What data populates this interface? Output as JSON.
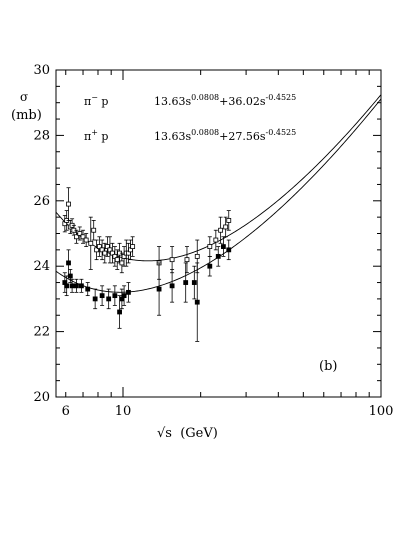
{
  "chart_data": {
    "type": "scatter",
    "ylabel_symbol": "σ",
    "ylabel_unit": "(mb)",
    "xlabel": "√s  (GeV)",
    "panel_label": "(b)",
    "x_scale": "log",
    "xlim": [
      5.5,
      100
    ],
    "ylim": [
      20,
      30
    ],
    "x_ticks": [
      6,
      10,
      100
    ],
    "y_ticks": [
      20,
      22,
      24,
      26,
      28,
      30
    ],
    "grid": false,
    "fits": [
      {
        "reaction": "π⁻ p",
        "label_base": "π",
        "label_sup": "−",
        "label_after": " p",
        "formula": {
          "a": "13.63",
          "p": "0.0808",
          "op": "+",
          "b": "36.02",
          "q": "-0.4525"
        },
        "a": 13.63,
        "p": 0.0808,
        "b": 36.02,
        "q": -0.4525
      },
      {
        "reaction": "π⁺ p",
        "label_base": "π",
        "label_sup": "+",
        "label_after": " p",
        "formula": {
          "a": "13.63",
          "p": "0.0808",
          "op": "+",
          "b": "27.56",
          "q": "-0.4525"
        },
        "a": 13.63,
        "p": 0.0808,
        "b": 27.56,
        "q": -0.4525
      }
    ],
    "series": [
      {
        "marker": "open-square",
        "points": [
          {
            "x": 5.95,
            "y": 25.3,
            "err": 0.25
          },
          {
            "x": 6.05,
            "y": 25.4,
            "err": 0.3
          },
          {
            "x": 6.15,
            "y": 25.9,
            "err": 0.5
          },
          {
            "x": 6.25,
            "y": 25.2,
            "err": 0.2
          },
          {
            "x": 6.35,
            "y": 25.25,
            "err": 0.2
          },
          {
            "x": 6.45,
            "y": 25.1,
            "err": 0.15
          },
          {
            "x": 6.6,
            "y": 24.9,
            "err": 0.2
          },
          {
            "x": 6.8,
            "y": 25.0,
            "err": 0.2
          },
          {
            "x": 7.0,
            "y": 24.9,
            "err": 0.2
          },
          {
            "x": 7.2,
            "y": 24.8,
            "err": 0.2
          },
          {
            "x": 7.5,
            "y": 24.7,
            "err": 0.8
          },
          {
            "x": 7.7,
            "y": 25.1,
            "err": 0.3
          },
          {
            "x": 7.9,
            "y": 24.5,
            "err": 0.3
          },
          {
            "x": 8.1,
            "y": 24.6,
            "err": 0.3
          },
          {
            "x": 8.3,
            "y": 24.5,
            "err": 0.3
          },
          {
            "x": 8.5,
            "y": 24.4,
            "err": 0.3
          },
          {
            "x": 8.7,
            "y": 24.6,
            "err": 0.3
          },
          {
            "x": 8.9,
            "y": 24.5,
            "err": 0.4
          },
          {
            "x": 9.1,
            "y": 24.4,
            "err": 0.3
          },
          {
            "x": 9.3,
            "y": 24.3,
            "err": 0.3
          },
          {
            "x": 9.5,
            "y": 24.2,
            "err": 0.3
          },
          {
            "x": 9.7,
            "y": 24.4,
            "err": 0.3
          },
          {
            "x": 9.9,
            "y": 24.1,
            "err": 0.3
          },
          {
            "x": 10.1,
            "y": 24.3,
            "err": 0.3
          },
          {
            "x": 10.3,
            "y": 24.4,
            "err": 0.4
          },
          {
            "x": 10.5,
            "y": 24.4,
            "err": 0.3
          },
          {
            "x": 10.7,
            "y": 24.5,
            "err": 0.3
          },
          {
            "x": 10.9,
            "y": 24.6,
            "err": 0.3
          },
          {
            "x": 13.8,
            "y": 24.1,
            "err": 0.5
          },
          {
            "x": 15.5,
            "y": 24.2,
            "err": 0.4
          },
          {
            "x": 17.7,
            "y": 24.2,
            "err": 0.4
          },
          {
            "x": 19.4,
            "y": 24.3,
            "err": 0.5
          },
          {
            "x": 21.7,
            "y": 24.6,
            "err": 0.3
          },
          {
            "x": 22.9,
            "y": 24.8,
            "err": 0.3
          },
          {
            "x": 23.9,
            "y": 25.1,
            "err": 0.4
          },
          {
            "x": 25.0,
            "y": 25.2,
            "err": 0.3
          },
          {
            "x": 25.7,
            "y": 25.4,
            "err": 0.3
          }
        ]
      },
      {
        "marker": "filled-square",
        "points": [
          {
            "x": 5.95,
            "y": 23.5,
            "err": 0.3
          },
          {
            "x": 6.05,
            "y": 23.4,
            "err": 0.3
          },
          {
            "x": 6.15,
            "y": 24.1,
            "err": 0.4
          },
          {
            "x": 6.25,
            "y": 23.7,
            "err": 0.2
          },
          {
            "x": 6.35,
            "y": 23.4,
            "err": 0.2
          },
          {
            "x": 6.6,
            "y": 23.4,
            "err": 0.2
          },
          {
            "x": 6.9,
            "y": 23.4,
            "err": 0.2
          },
          {
            "x": 7.3,
            "y": 23.3,
            "err": 0.2
          },
          {
            "x": 7.8,
            "y": 23.0,
            "err": 0.3
          },
          {
            "x": 8.3,
            "y": 23.1,
            "err": 0.3
          },
          {
            "x": 8.8,
            "y": 23.0,
            "err": 0.3
          },
          {
            "x": 9.3,
            "y": 23.1,
            "err": 0.3
          },
          {
            "x": 9.7,
            "y": 22.6,
            "err": 0.5
          },
          {
            "x": 9.9,
            "y": 23.0,
            "err": 0.3
          },
          {
            "x": 10.1,
            "y": 23.1,
            "err": 0.3
          },
          {
            "x": 10.5,
            "y": 23.2,
            "err": 0.3
          },
          {
            "x": 13.8,
            "y": 23.3,
            "err": 0.8
          },
          {
            "x": 15.5,
            "y": 23.4,
            "err": 0.5
          },
          {
            "x": 17.5,
            "y": 23.5,
            "err": 0.6
          },
          {
            "x": 18.9,
            "y": 23.5,
            "err": 0.5
          },
          {
            "x": 19.4,
            "y": 22.9,
            "err": 1.2
          },
          {
            "x": 21.7,
            "y": 24.0,
            "err": 0.3
          },
          {
            "x": 23.4,
            "y": 24.3,
            "err": 0.3
          },
          {
            "x": 24.5,
            "y": 24.6,
            "err": 0.3
          },
          {
            "x": 25.7,
            "y": 24.5,
            "err": 0.3
          }
        ]
      }
    ]
  }
}
